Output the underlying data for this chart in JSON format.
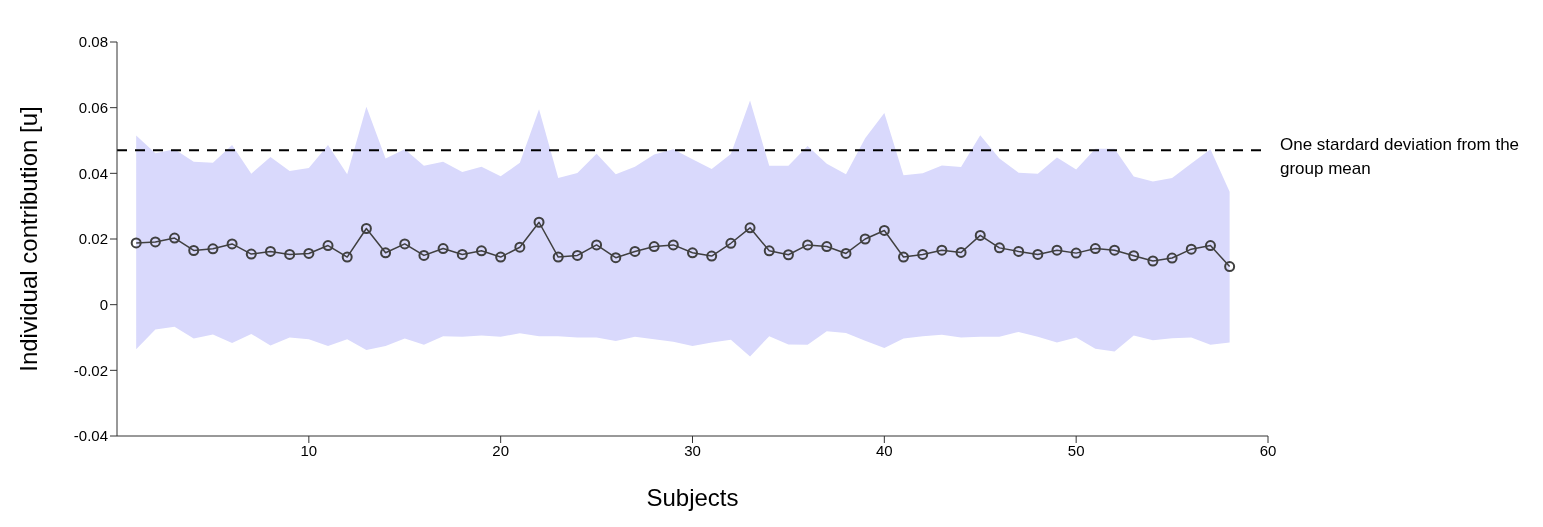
{
  "chart_data": {
    "type": "line",
    "xlabel": "Subjects",
    "ylabel": "Individual contribution [u]",
    "x": [
      1,
      2,
      3,
      4,
      5,
      6,
      7,
      8,
      9,
      10,
      11,
      12,
      13,
      14,
      15,
      16,
      17,
      18,
      19,
      20,
      21,
      22,
      23,
      24,
      25,
      26,
      27,
      28,
      29,
      30,
      31,
      32,
      33,
      34,
      35,
      36,
      37,
      38,
      39,
      40,
      41,
      42,
      43,
      44,
      45,
      46,
      47,
      48,
      49,
      50,
      51,
      52,
      53,
      54,
      55,
      56,
      57,
      58
    ],
    "series": [
      {
        "color": "#404040",
        "values": [
          0.0188,
          0.0191,
          0.0203,
          0.0165,
          0.017,
          0.0185,
          0.0154,
          0.0162,
          0.0153,
          0.0156,
          0.018,
          0.0145,
          0.0232,
          0.0158,
          0.0185,
          0.015,
          0.0171,
          0.0153,
          0.0164,
          0.0145,
          0.0175,
          0.0251,
          0.0145,
          0.015,
          0.0182,
          0.0143,
          0.0162,
          0.0177,
          0.0182,
          0.0158,
          0.0148,
          0.0187,
          0.0234,
          0.0164,
          0.0152,
          0.0182,
          0.0177,
          0.0156,
          0.02,
          0.0226,
          0.0145,
          0.0153,
          0.0166,
          0.0159,
          0.0211,
          0.0173,
          0.0162,
          0.0153,
          0.0166,
          0.0157,
          0.0171,
          0.0166,
          0.0149,
          0.0133,
          0.0142,
          0.0169,
          0.018,
          0.0116
        ],
        "lower": [
          -0.0136,
          -0.0076,
          -0.0067,
          -0.0103,
          -0.0091,
          -0.0117,
          -0.0089,
          -0.0124,
          -0.01,
          -0.0105,
          -0.0126,
          -0.0105,
          -0.0138,
          -0.0126,
          -0.0103,
          -0.0122,
          -0.0096,
          -0.0098,
          -0.0094,
          -0.0098,
          -0.0087,
          -0.0096,
          -0.0096,
          -0.01,
          -0.01,
          -0.0111,
          -0.0098,
          -0.0105,
          -0.0113,
          -0.0126,
          -0.0115,
          -0.0107,
          -0.0158,
          -0.0096,
          -0.0121,
          -0.0122,
          -0.0081,
          -0.0086,
          -0.011,
          -0.0132,
          -0.0103,
          -0.0096,
          -0.0092,
          -0.01,
          -0.0098,
          -0.0098,
          -0.0083,
          -0.0098,
          -0.0115,
          -0.01,
          -0.0134,
          -0.0143,
          -0.0094,
          -0.0108,
          -0.0102,
          -0.01,
          -0.0122,
          -0.0115
        ],
        "upper": [
          0.0515,
          0.0461,
          0.0473,
          0.0435,
          0.0432,
          0.0486,
          0.0399,
          0.045,
          0.0407,
          0.0416,
          0.0486,
          0.0397,
          0.0603,
          0.0445,
          0.0473,
          0.0423,
          0.0435,
          0.0404,
          0.042,
          0.0391,
          0.0432,
          0.0595,
          0.0386,
          0.0401,
          0.046,
          0.0397,
          0.042,
          0.0457,
          0.0473,
          0.0443,
          0.0413,
          0.0459,
          0.0622,
          0.0423,
          0.0423,
          0.0483,
          0.0429,
          0.0397,
          0.0507,
          0.0584,
          0.0394,
          0.04,
          0.0424,
          0.0419,
          0.0516,
          0.0445,
          0.0402,
          0.0399,
          0.0448,
          0.0412,
          0.0475,
          0.0475,
          0.039,
          0.0375,
          0.0386,
          0.043,
          0.0473,
          0.0344
        ]
      }
    ],
    "xlim": [
      0,
      60
    ],
    "xticks": [
      10,
      20,
      30,
      40,
      50,
      60
    ],
    "ylim": [
      -0.04,
      0.08
    ],
    "yticks": [
      -0.04,
      -0.02,
      0,
      0.02,
      0.04,
      0.06,
      0.08
    ],
    "ref_lines": [
      {
        "axis": "y",
        "value": 0.047,
        "label": "One stardard deviation from the group mean",
        "color": "#000000",
        "line_style": "dashed"
      }
    ],
    "marker": "circle",
    "line_style": "solid"
  }
}
